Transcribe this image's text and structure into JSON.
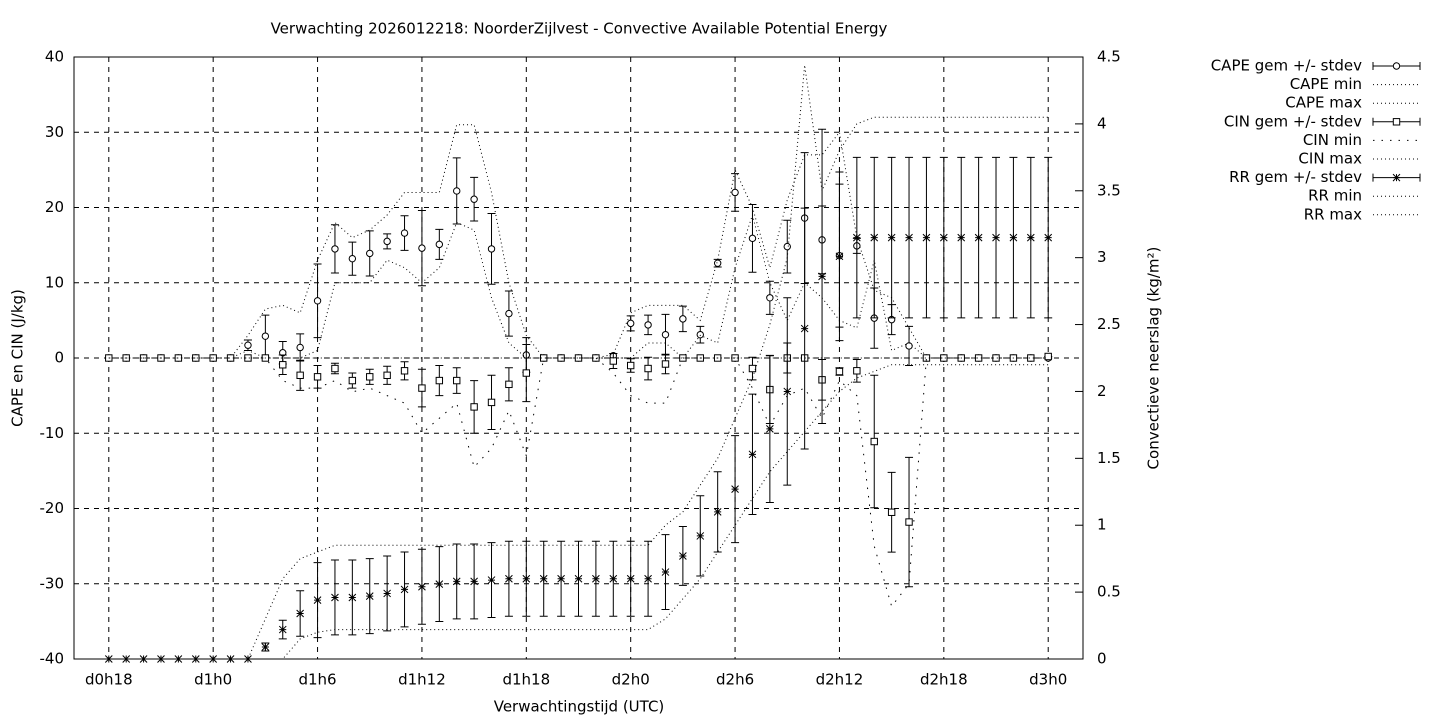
{
  "chart_data": {
    "type": "errorbar",
    "title": "Verwachting 2026012218: NoorderZijlvest - Convective Available Potential Energy",
    "xlabel": "Verwachtingstijd (UTC)",
    "ylabel": "CAPE en CIN (J/kg)",
    "y2label": "Convectieve neerslag (kg/m²)",
    "xlim": [
      -2,
      56
    ],
    "xticks": [
      {
        "value": 0,
        "label": "d0h18"
      },
      {
        "value": 6,
        "label": "d1h0"
      },
      {
        "value": 12,
        "label": "d1h6"
      },
      {
        "value": 18,
        "label": "d1h12"
      },
      {
        "value": 24,
        "label": "d1h18"
      },
      {
        "value": 30,
        "label": "d2h0"
      },
      {
        "value": 36,
        "label": "d2h6"
      },
      {
        "value": 42,
        "label": "d2h12"
      },
      {
        "value": 48,
        "label": "d2h18"
      },
      {
        "value": 54,
        "label": "d3h0"
      }
    ],
    "ylim": [
      -40,
      40
    ],
    "yticks": [
      -40,
      -30,
      -20,
      -10,
      0,
      10,
      20,
      30,
      40
    ],
    "y2lim": [
      0,
      4.5
    ],
    "y2ticks": [
      0,
      0.5,
      1,
      1.5,
      2,
      2.5,
      3,
      3.5,
      4,
      4.5
    ],
    "grid": true,
    "legend": "right",
    "x": [
      0,
      1,
      2,
      3,
      4,
      5,
      6,
      7,
      8,
      9,
      10,
      11,
      12,
      13,
      14,
      15,
      16,
      17,
      18,
      19,
      20,
      21,
      22,
      23,
      24,
      25,
      26,
      27,
      28,
      29,
      30,
      31,
      32,
      33,
      34,
      35,
      36,
      37,
      38,
      39,
      40,
      41,
      42,
      43,
      44,
      45,
      46,
      47,
      48,
      49,
      50,
      51,
      52,
      53,
      54
    ],
    "series": [
      {
        "name": "CAPE gem +/- stdev",
        "color": "#000000",
        "style": "errorbar",
        "marker": "circle",
        "axis": "y",
        "values": [
          0,
          0,
          0,
          0,
          0,
          0,
          0,
          0,
          1.7,
          2.9,
          0.7,
          1.4,
          7.6,
          14.5,
          13.2,
          13.9,
          15.5,
          16.6,
          14.6,
          15.1,
          22.2,
          21.1,
          14.5,
          5.9,
          0.4,
          0,
          0,
          0,
          0,
          0.3,
          4.6,
          4.4,
          3.1,
          5.2,
          3.1,
          12.6,
          22,
          15.9,
          8,
          14.8,
          18.6,
          15.7,
          13.6,
          14.9,
          5.3,
          5.1,
          1.6,
          0,
          0,
          0,
          0,
          0,
          0,
          0,
          0
        ],
        "errors": [
          0,
          0,
          0,
          0,
          0,
          0,
          0,
          0,
          0.7,
          2.8,
          1.5,
          1.8,
          4.9,
          3.2,
          2.2,
          3,
          1,
          2.3,
          5,
          2,
          4.4,
          2.9,
          4.7,
          3,
          2.3,
          0,
          0,
          0,
          0,
          0.3,
          1,
          1.3,
          2.7,
          1.7,
          1.1,
          0.5,
          2.5,
          4.5,
          2.2,
          3.5,
          8.7,
          4.5,
          9.5,
          1,
          4,
          2,
          2.6,
          0,
          0,
          0,
          0,
          0,
          0,
          0,
          0
        ]
      },
      {
        "name": "CAPE min",
        "color": "#000000",
        "style": "dotted",
        "axis": "y",
        "values": [
          0,
          0,
          0,
          0,
          0,
          0,
          0,
          0,
          1,
          0,
          0,
          0,
          1,
          10,
          10,
          10,
          13,
          12,
          10,
          12,
          18,
          17,
          8,
          2,
          0,
          0,
          0,
          0,
          0,
          0,
          0,
          2,
          2,
          0,
          3,
          2,
          12,
          19,
          10,
          5,
          10,
          8,
          5,
          4,
          13,
          1,
          2,
          0,
          0,
          0,
          0,
          0,
          0,
          0,
          0
        ]
      },
      {
        "name": "CAPE max",
        "color": "#000000",
        "style": "dotted",
        "axis": "y",
        "values": [
          0,
          0,
          0,
          0,
          0,
          0,
          0,
          0,
          3,
          6.5,
          7,
          6,
          13,
          18,
          16,
          17,
          19,
          22,
          22,
          22,
          31,
          31,
          22,
          10,
          3,
          0,
          0,
          0,
          0,
          0.5,
          6,
          7,
          7,
          7,
          5,
          13,
          25,
          20,
          12,
          21,
          27,
          27,
          30,
          16,
          9,
          8,
          4,
          0,
          0,
          0,
          0,
          0,
          0,
          0,
          0
        ]
      },
      {
        "name": "CIN gem +/- stdev",
        "color": "#000000",
        "style": "errorbar",
        "marker": "square",
        "axis": "y",
        "values": [
          0,
          0,
          0,
          0,
          0,
          0,
          0,
          0,
          0,
          0,
          -0.9,
          -2.3,
          -2.5,
          -1.4,
          -3,
          -2.5,
          -2.3,
          -1.7,
          -4,
          -3,
          -3,
          -6.5,
          -5.9,
          -3.5,
          -2,
          0,
          0,
          0,
          0,
          -0.4,
          -1,
          -1.4,
          -0.8,
          0,
          0,
          0,
          0,
          -1.4,
          -4.2,
          0,
          0,
          -2.9,
          -1.8,
          -1.7,
          -11.1,
          -20.5,
          -21.8,
          0,
          0,
          0,
          0,
          0,
          0,
          0,
          0.2
        ],
        "errors": [
          0,
          0,
          0,
          0,
          0,
          0,
          0,
          0,
          0,
          0,
          1.3,
          2,
          1.5,
          0.7,
          1,
          1,
          1.2,
          1.2,
          2.5,
          2,
          1.7,
          3.5,
          3.6,
          2.2,
          3.8,
          0,
          0,
          0,
          0,
          1,
          0.9,
          1.5,
          1.3,
          0,
          0,
          0,
          0,
          1.5,
          4.5,
          2,
          0,
          2.7,
          0.5,
          1.5,
          8.8,
          5.3,
          8.6,
          0,
          0,
          0,
          0,
          0,
          0,
          0,
          0
        ]
      },
      {
        "name": "CIN min",
        "color": "#000000",
        "style": "sparse",
        "axis": "y",
        "values": [
          0,
          0,
          0,
          0,
          0,
          0,
          0,
          0,
          0,
          0,
          -3,
          -4,
          -4,
          -3,
          -4.5,
          -4,
          -5,
          -6,
          -10,
          -8,
          -6,
          -14.5,
          -12,
          -7,
          -13,
          0,
          0,
          0,
          0,
          -2,
          -5,
          -6,
          -6,
          0,
          0,
          0,
          0,
          -4,
          -9,
          -5,
          -4,
          -8,
          -3,
          -5,
          -25,
          -33,
          -30,
          0,
          0,
          0,
          0,
          0,
          0,
          0,
          0
        ]
      },
      {
        "name": "CIN max",
        "color": "#000000",
        "style": "dotted",
        "axis": "y",
        "values": [
          0,
          0,
          0,
          0,
          0,
          0,
          0,
          0,
          0,
          0,
          0,
          0,
          0,
          0,
          0,
          0,
          0,
          0,
          0,
          0,
          0,
          0,
          0,
          0,
          0,
          0,
          0,
          0,
          0,
          0,
          0,
          0,
          0,
          0,
          0,
          0,
          0,
          0,
          0,
          0,
          0,
          0,
          0,
          0,
          0,
          0,
          0,
          0,
          0,
          0,
          0,
          0,
          0,
          0,
          0
        ]
      },
      {
        "name": "RR gem +/- stdev",
        "color": "#000000",
        "style": "errorbar",
        "marker": "star",
        "axis": "y2",
        "values": [
          0,
          0,
          0,
          0,
          0,
          0,
          0,
          0,
          0,
          0.09,
          0.22,
          0.34,
          0.44,
          0.46,
          0.46,
          0.47,
          0.49,
          0.52,
          0.54,
          0.56,
          0.58,
          0.58,
          0.59,
          0.6,
          0.6,
          0.6,
          0.6,
          0.6,
          0.6,
          0.6,
          0.6,
          0.6,
          0.65,
          0.77,
          0.92,
          1.1,
          1.27,
          1.53,
          1.72,
          2.0,
          2.47,
          2.86,
          3.01,
          3.15,
          3.15,
          3.15,
          3.15,
          3.15,
          3.15,
          3.15,
          3.15,
          3.15,
          3.15,
          3.15,
          3.15
        ],
        "errors": [
          0,
          0,
          0,
          0,
          0,
          0,
          0,
          0,
          0,
          0.03,
          0.07,
          0.17,
          0.28,
          0.28,
          0.28,
          0.28,
          0.28,
          0.28,
          0.28,
          0.28,
          0.28,
          0.28,
          0.28,
          0.28,
          0.28,
          0.28,
          0.28,
          0.28,
          0.28,
          0.28,
          0.28,
          0.28,
          0.28,
          0.22,
          0.3,
          0.3,
          0.4,
          0.45,
          0.55,
          0.7,
          0.9,
          1.1,
          0.63,
          0.6,
          0.6,
          0.6,
          0.6,
          0.6,
          0.6,
          0.6,
          0.6,
          0.6,
          0.6,
          0.6,
          0.6
        ]
      },
      {
        "name": "RR min",
        "color": "#000000",
        "style": "dotted",
        "axis": "y2",
        "values": [
          0,
          0,
          0,
          0,
          0,
          0,
          0,
          0,
          0,
          0,
          0,
          0.15,
          0.2,
          0.22,
          0.22,
          0.22,
          0.22,
          0.22,
          0.22,
          0.22,
          0.22,
          0.22,
          0.22,
          0.22,
          0.22,
          0.22,
          0.22,
          0.22,
          0.22,
          0.22,
          0.22,
          0.22,
          0.3,
          0.45,
          0.6,
          0.8,
          1.0,
          1.2,
          1.4,
          1.55,
          1.7,
          1.85,
          2.0,
          2.1,
          2.15,
          2.2,
          2.2,
          2.2,
          2.2,
          2.2,
          2.2,
          2.2,
          2.2,
          2.2,
          2.2
        ]
      },
      {
        "name": "RR max",
        "color": "#000000",
        "style": "dotted",
        "axis": "y2",
        "values": [
          0,
          0,
          0,
          0,
          0,
          0,
          0,
          0,
          0,
          0.3,
          0.6,
          0.75,
          0.8,
          0.85,
          0.85,
          0.85,
          0.85,
          0.85,
          0.85,
          0.85,
          0.85,
          0.85,
          0.85,
          0.85,
          0.85,
          0.85,
          0.85,
          0.85,
          0.85,
          0.85,
          0.85,
          0.85,
          1.0,
          1.1,
          1.3,
          1.5,
          1.8,
          2.1,
          2.5,
          3.0,
          4.44,
          3.5,
          3.8,
          4.0,
          4.05,
          4.05,
          4.05,
          4.05,
          4.05,
          4.05,
          4.05,
          4.05,
          4.05,
          4.05,
          4.05
        ]
      }
    ]
  }
}
